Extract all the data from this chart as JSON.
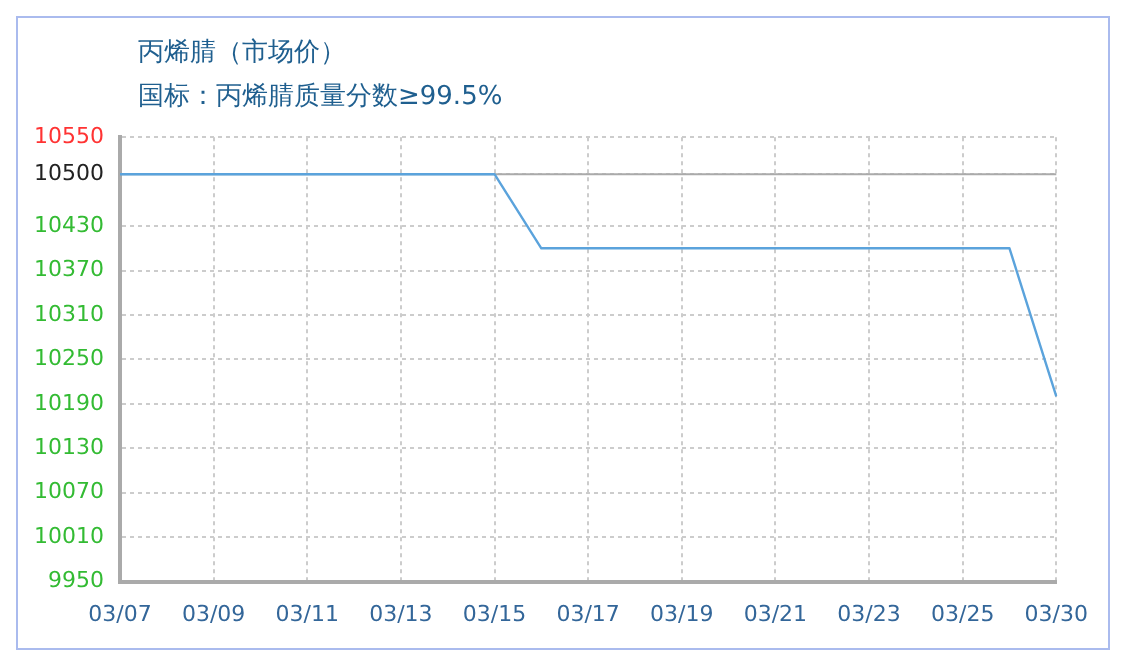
{
  "chart_data": {
    "type": "line",
    "title": "丙烯腈（市场价）",
    "subtitle": "国标：丙烯腈质量分数≥99.5%",
    "categories": [
      "03/07",
      null,
      "03/09",
      null,
      "03/11",
      null,
      "03/13",
      null,
      "03/15",
      null,
      "03/17",
      null,
      "03/19",
      null,
      "03/21",
      null,
      "03/23",
      null,
      "03/25",
      null,
      "03/30"
    ],
    "series": [
      {
        "color": "#5ba3dc",
        "values": [
          10500,
          10500,
          10500,
          10500,
          10500,
          10500,
          10500,
          10500,
          10500,
          10400,
          10400,
          10400,
          10400,
          10400,
          10400,
          10400,
          10400,
          10400,
          10400,
          10400,
          10200
        ]
      }
    ],
    "ylim": [
      9950,
      10550
    ],
    "yticks": [
      9950,
      10010,
      10070,
      10130,
      10190,
      10250,
      10310,
      10370,
      10430,
      10500,
      10550
    ],
    "ref_lines": [
      {
        "axis": "y",
        "value": 10500,
        "color": "#aaaaaa"
      }
    ],
    "grid": true,
    "legend": false,
    "marker": "none",
    "line_style": "solid"
  }
}
